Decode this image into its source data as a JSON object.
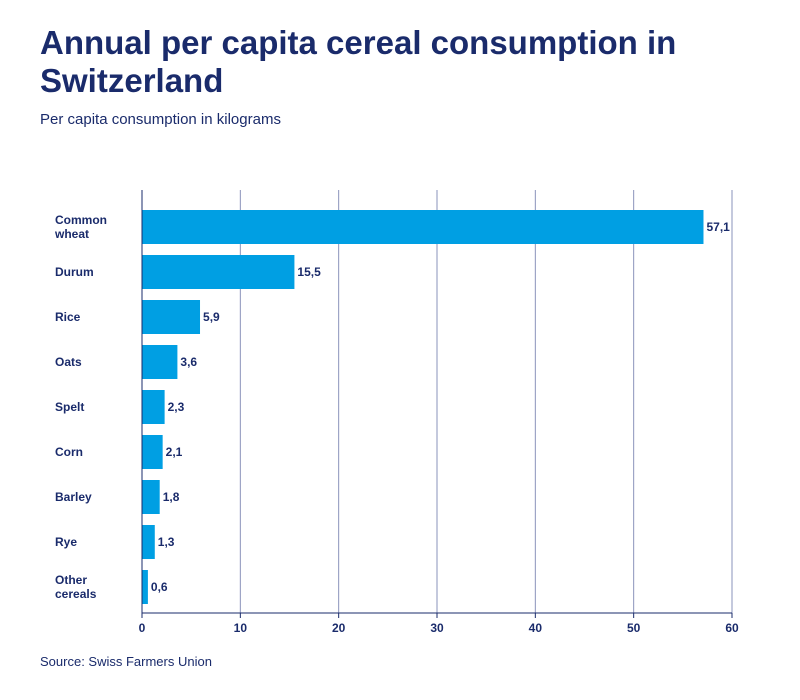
{
  "header": {
    "title": "Annual per capita cereal consumption in Switzerland",
    "subtitle": "Per capita consumption in kilograms"
  },
  "footer": {
    "source": "Source: Swiss Farmers Union"
  },
  "colors": {
    "bar": "#009fe3",
    "text": "#1a2b6b",
    "grid": "#8a93bb",
    "axis": "#1a2b6b"
  },
  "chart_data": {
    "type": "bar",
    "orientation": "horizontal",
    "title": "Annual per capita cereal consumption in Switzerland",
    "subtitle": "Per capita consumption in kilograms",
    "categories": [
      [
        "Common",
        "wheat"
      ],
      [
        "Durum"
      ],
      [
        "Rice"
      ],
      [
        "Oats"
      ],
      [
        "Spelt"
      ],
      [
        "Corn"
      ],
      [
        "Barley"
      ],
      [
        "Rye"
      ],
      [
        "Other",
        "cereals"
      ]
    ],
    "values": [
      57.1,
      15.5,
      5.9,
      3.6,
      2.3,
      2.1,
      1.8,
      1.3,
      0.6
    ],
    "value_labels": [
      "57,1",
      "15,5",
      "5,9",
      "3,6",
      "2,3",
      "2,1",
      "1,8",
      "1,3",
      "0,6"
    ],
    "xlim": [
      0,
      60
    ],
    "xticks": [
      0,
      10,
      20,
      30,
      40,
      50,
      60
    ],
    "grid": true,
    "legend": "none"
  }
}
